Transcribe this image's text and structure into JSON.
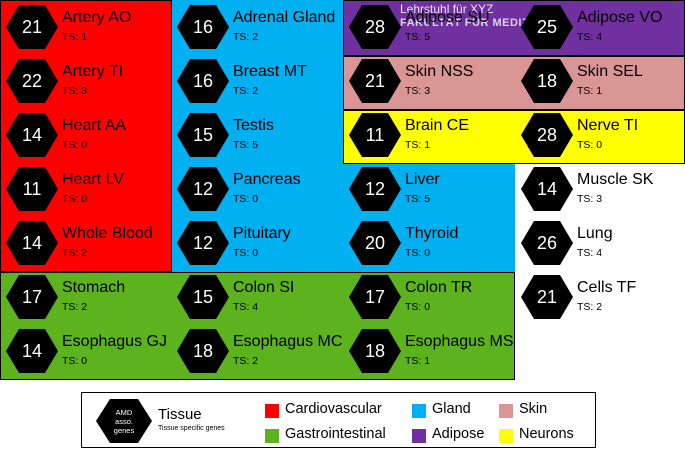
{
  "colors": {
    "cardiovascular": "#ff0000",
    "gland": "#00b0f0",
    "skin": "#d99694",
    "gastrointestinal": "#5cb31e",
    "adipose": "#7030a0",
    "neurons": "#ffff00",
    "unassigned": "#ffffff"
  },
  "watermark": {
    "line1": "Lehrstuhl für XYZ",
    "line2": "FAKULTÄT FÜR MEDIZ"
  },
  "tissues": [
    {
      "name": "Artery AO",
      "genes": "21",
      "ts": "TS: 1",
      "group": "cardiovascular"
    },
    {
      "name": "Adrenal Gland",
      "genes": "16",
      "ts": "TS: 2",
      "group": "gland"
    },
    {
      "name": "Adipose SU",
      "genes": "28",
      "ts": "TS: 5",
      "group": "adipose"
    },
    {
      "name": "Adipose VO",
      "genes": "25",
      "ts": "TS: 4",
      "group": "adipose"
    },
    {
      "name": "Artery TI",
      "genes": "22",
      "ts": "TS: 3",
      "group": "cardiovascular"
    },
    {
      "name": "Breast MT",
      "genes": "16",
      "ts": "TS: 2",
      "group": "gland"
    },
    {
      "name": "Skin NSS",
      "genes": "21",
      "ts": "TS: 3",
      "group": "skin"
    },
    {
      "name": "Skin SEL",
      "genes": "18",
      "ts": "TS: 1",
      "group": "skin"
    },
    {
      "name": "Heart AA",
      "genes": "14",
      "ts": "TS: 0",
      "group": "cardiovascular"
    },
    {
      "name": "Testis",
      "genes": "15",
      "ts": "TS: 5",
      "group": "gland"
    },
    {
      "name": "Brain CE",
      "genes": "11",
      "ts": "TS: 1",
      "group": "neurons"
    },
    {
      "name": "Nerve TI",
      "genes": "28",
      "ts": "TS: 0",
      "group": "neurons"
    },
    {
      "name": "Heart LV",
      "genes": "11",
      "ts": "TS: 0",
      "group": "cardiovascular"
    },
    {
      "name": "Pancreas",
      "genes": "12",
      "ts": "TS: 0",
      "group": "gland"
    },
    {
      "name": "Liver",
      "genes": "12",
      "ts": "TS: 5",
      "group": "gland"
    },
    {
      "name": "Muscle SK",
      "genes": "14",
      "ts": "TS: 3",
      "group": "unassigned"
    },
    {
      "name": "Whole Blood",
      "genes": "14",
      "ts": "TS: 2",
      "group": "cardiovascular"
    },
    {
      "name": "Pituitary",
      "genes": "12",
      "ts": "TS: 0",
      "group": "gland"
    },
    {
      "name": "Thyroid",
      "genes": "20",
      "ts": "TS: 0",
      "group": "gland"
    },
    {
      "name": "Lung",
      "genes": "26",
      "ts": "TS: 4",
      "group": "unassigned"
    },
    {
      "name": "Stomach",
      "genes": "17",
      "ts": "TS: 2",
      "group": "gastrointestinal"
    },
    {
      "name": "Colon SI",
      "genes": "15",
      "ts": "TS: 4",
      "group": "gastrointestinal"
    },
    {
      "name": "Colon TR",
      "genes": "17",
      "ts": "TS: 0",
      "group": "gastrointestinal"
    },
    {
      "name": "Cells TF",
      "genes": "21",
      "ts": "TS: 2",
      "group": "unassigned"
    },
    {
      "name": "Esophagus GJ",
      "genes": "14",
      "ts": "TS: 0",
      "group": "gastrointestinal"
    },
    {
      "name": "Esophagus MC",
      "genes": "18",
      "ts": "TS: 2",
      "group": "gastrointestinal"
    },
    {
      "name": "Esophagus MS",
      "genes": "18",
      "ts": "TS: 1",
      "group": "gastrointestinal"
    }
  ],
  "legend": {
    "hex_label": "AMD asso. genes",
    "tissue_label": "Tissue",
    "tissue_specific": "Tissue specific genes",
    "categories": {
      "cardiovascular": "Cardiovascular",
      "gland": "Gland",
      "skin": "Skin",
      "gastrointestinal": "Gastrointestinal",
      "adipose": "Adipose",
      "neurons": "Neurons"
    }
  }
}
